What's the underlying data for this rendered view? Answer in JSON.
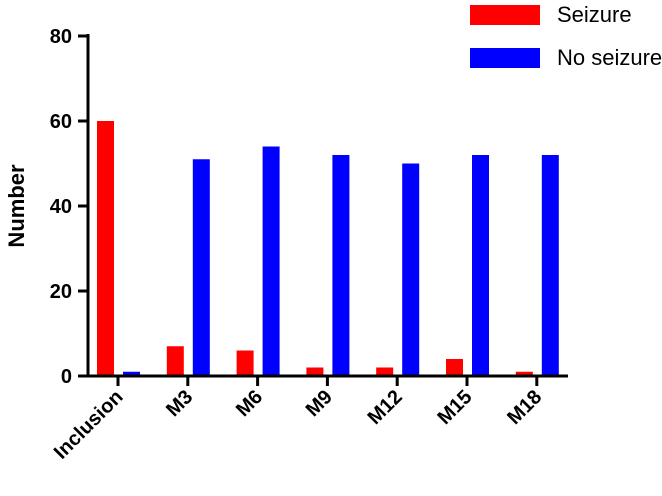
{
  "chart_data": {
    "type": "bar",
    "title": "",
    "xlabel": "",
    "ylabel": "Number",
    "ylim": [
      0,
      80
    ],
    "yticks": [
      "0",
      "20",
      "40",
      "60",
      "80"
    ],
    "categories": [
      "Inclusion",
      "M3",
      "M6",
      "M9",
      "M12",
      "M15",
      "M18"
    ],
    "series": [
      {
        "name": "Seizure",
        "color": "#ff0000",
        "values": [
          60,
          7,
          6,
          2,
          2,
          4,
          1
        ]
      },
      {
        "name": "No seizure",
        "color": "#0000ff",
        "values": [
          1,
          51,
          54,
          52,
          50,
          52,
          52
        ]
      }
    ],
    "legend_position": "top-right",
    "grid": false
  }
}
